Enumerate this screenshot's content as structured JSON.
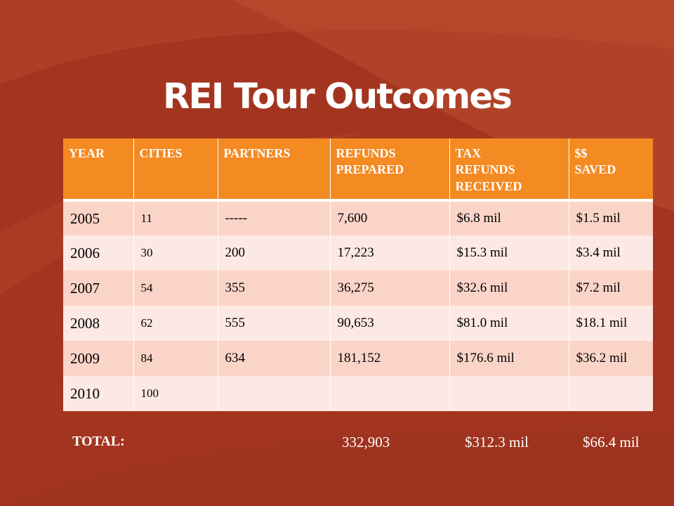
{
  "title": "REI Tour Outcomes",
  "colors": {
    "background": "#a83a22",
    "header_fill": "#f48a22",
    "row_dark": "#fbd4c8",
    "row_light": "#fde9e4",
    "text_white": "#ffffff"
  },
  "table": {
    "headers": [
      [
        "YEAR"
      ],
      [
        "CITIES"
      ],
      [
        "PARTNERS"
      ],
      [
        "REFUNDS",
        "PREPARED"
      ],
      [
        "TAX",
        "REFUNDS",
        "RECEIVED"
      ],
      [
        "$$",
        "SAVED"
      ]
    ],
    "rows": [
      [
        "2005",
        "11",
        "-----",
        "7,600",
        "$6.8 mil",
        "$1.5 mil"
      ],
      [
        "2006",
        "30",
        "200",
        "17,223",
        "$15.3 mil",
        "$3.4 mil"
      ],
      [
        "2007",
        "54",
        "355",
        "36,275",
        "$32.6 mil",
        "$7.2 mil"
      ],
      [
        "2008",
        "62",
        "555",
        "90,653",
        "$81.0 mil",
        "$18.1 mil"
      ],
      [
        "2009",
        "84",
        "634",
        "181,152",
        "$176.6 mil",
        "$36.2 mil"
      ],
      [
        "2010",
        "100",
        "",
        "",
        "",
        ""
      ]
    ]
  },
  "totals": {
    "label": "TOTAL:",
    "refunds": "332,903",
    "tax_refunds": "$312.3 mil",
    "saved": "$66.4 mil"
  }
}
